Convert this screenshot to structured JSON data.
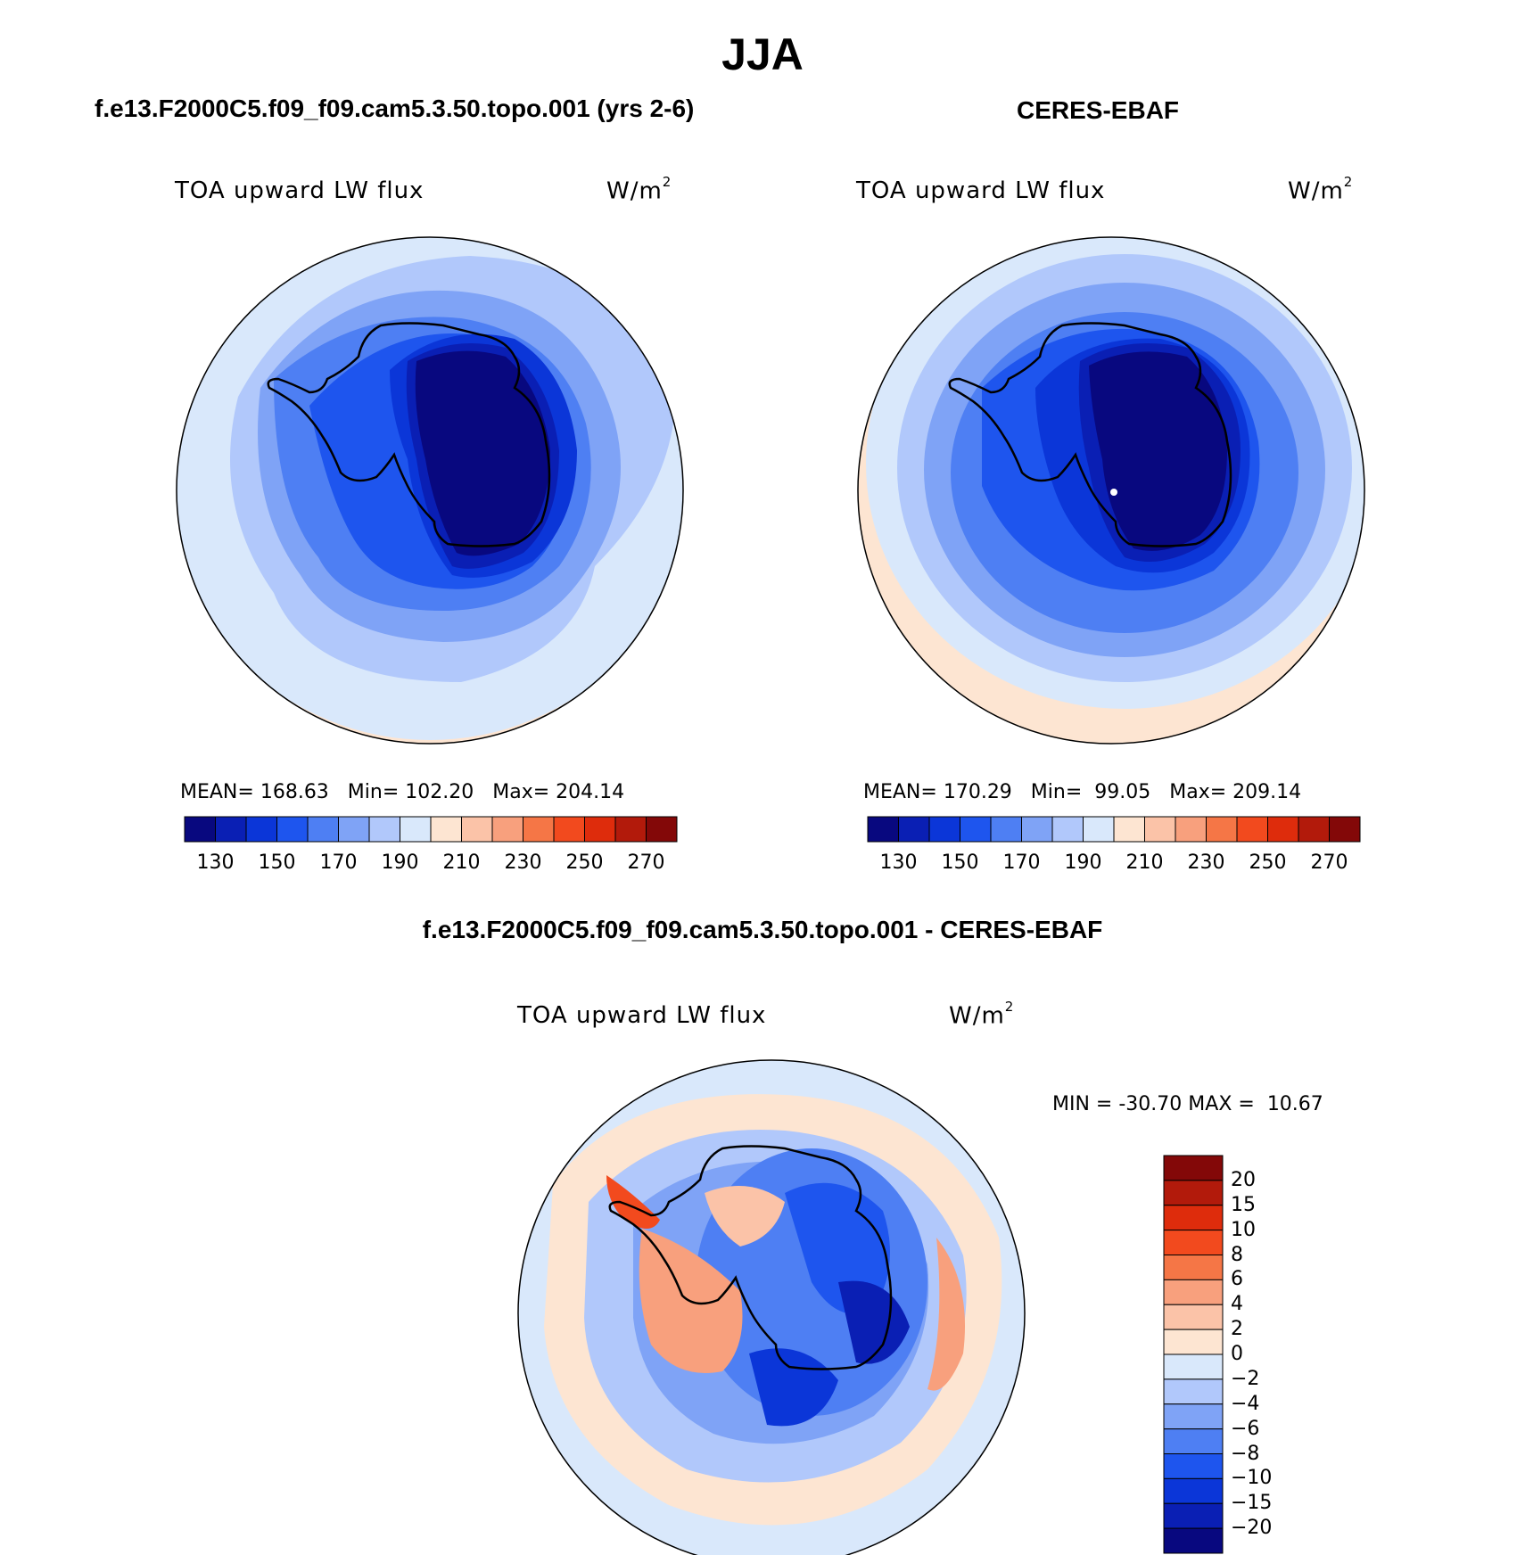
{
  "main_title": "JJA",
  "model_title": "f.e13.F2000C5.f09_f09.cam5.3.50.topo.001 (yrs 2-6)",
  "obs_title": "CERES-EBAF",
  "diff_title": "f.e13.F2000C5.f09_f09.cam5.3.50.topo.001 - CERES-EBAF",
  "variable_label": "TOA upward LW flux",
  "units_base": "W/m",
  "units_exp": "2",
  "model_panel": {
    "mean_label": "MEAN=",
    "mean": "168.63",
    "min_label": "Min=",
    "min": "102.20",
    "max_label": "Max=",
    "max": "204.14"
  },
  "obs_panel": {
    "mean_label": "MEAN=",
    "mean": "170.29",
    "min_label": "Min=",
    "min": "99.05",
    "max_label": "Max=",
    "max": "209.14"
  },
  "diff_panel": {
    "min_label": "MIN =",
    "min": "-30.70",
    "max_label": "MAX =",
    "max": "10.67"
  },
  "abs_colorbar": {
    "tick_labels": [
      "130",
      "150",
      "170",
      "190",
      "210",
      "230",
      "250",
      "270"
    ],
    "colors": [
      "#08087f",
      "#0a1fb4",
      "#0b36d8",
      "#1e55ee",
      "#4e7ff3",
      "#7fa3f6",
      "#b1c8fb",
      "#d9e8fb",
      "#fde5d2",
      "#fbc3a8",
      "#f8a07d",
      "#f57646",
      "#f24a1e",
      "#de2c0c",
      "#b21a0b",
      "#830808"
    ]
  },
  "diff_colorbar": {
    "tick_labels": [
      "20",
      "15",
      "10",
      "8",
      "6",
      "4",
      "2",
      "0",
      "−2",
      "−4",
      "−6",
      "−8",
      "−10",
      "−15",
      "−20"
    ],
    "colors": [
      "#830808",
      "#b21a0b",
      "#de2c0c",
      "#f24a1e",
      "#f57646",
      "#f8a07d",
      "#fbc3a8",
      "#fde5d2",
      "#d9e8fb",
      "#b1c8fb",
      "#7fa3f6",
      "#4e7ff3",
      "#1e55ee",
      "#0b36d8",
      "#0a1fb4",
      "#08087f"
    ]
  }
}
